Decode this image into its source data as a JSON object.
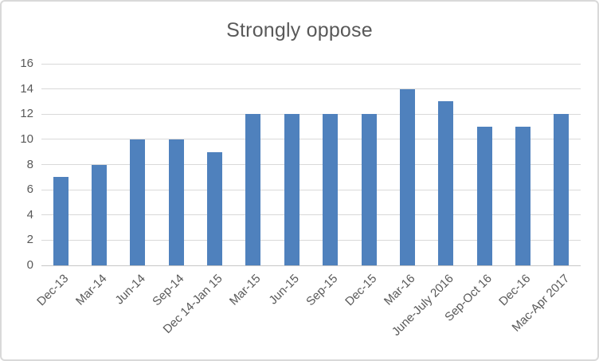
{
  "chart_data": {
    "type": "bar",
    "title": "Strongly oppose",
    "categories": [
      "Dec-13",
      "Mar-14",
      "Jun-14",
      "Sep-14",
      "Dec 14-Jan 15",
      "Mar-15",
      "Jun-15",
      "Sep-15",
      "Dec-15",
      "Mar-16",
      "June-July 2016",
      "Sep-Oct 16",
      "Dec-16",
      "Mac-Apr 2017"
    ],
    "values": [
      7,
      8,
      10,
      10,
      9,
      12,
      12,
      12,
      12,
      14,
      13,
      11,
      11,
      12
    ],
    "series_name": "Strongly oppose",
    "xlabel": "",
    "ylabel": "",
    "ylim": [
      0,
      16
    ],
    "y_ticks": [
      0,
      2,
      4,
      6,
      8,
      10,
      12,
      14,
      16
    ],
    "grid": true,
    "legend": false,
    "legend_position": "none",
    "x_label_rotation_deg": 45,
    "colors": {
      "bar": "#4F81BD",
      "gridline": "#D9D9D9",
      "axis_line": "#C6C6C6",
      "text": "#595959",
      "border": "#D9D9D9",
      "background": "#FFFFFF"
    }
  }
}
